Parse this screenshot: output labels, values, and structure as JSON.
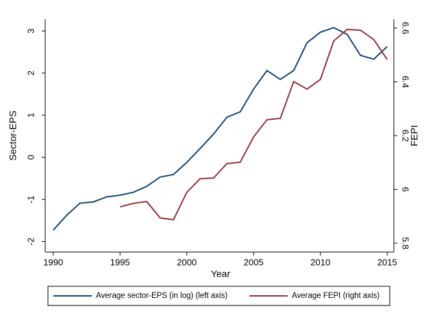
{
  "chart_data": {
    "type": "line",
    "x_label": "Year",
    "y_label": "Sector-EPS",
    "y2_label": "FEPI",
    "x": [
      1990,
      1991,
      1992,
      1993,
      1994,
      1995,
      1996,
      1997,
      1998,
      1999,
      2000,
      2001,
      2002,
      2003,
      2004,
      2005,
      2006,
      2007,
      2008,
      2009,
      2010,
      2011,
      2012,
      2013,
      2014,
      2015
    ],
    "series": [
      {
        "name": "Average sector-EPS (in log) (left axis)",
        "color": "#1a476f",
        "values": [
          -1.73,
          -1.38,
          -1.09,
          -1.06,
          -0.94,
          -0.9,
          -0.83,
          -0.69,
          -0.47,
          -0.41,
          -0.12,
          0.21,
          0.55,
          0.95,
          1.08,
          1.62,
          2.06,
          1.85,
          2.06,
          2.72,
          2.97,
          3.08,
          2.92,
          2.42,
          2.33,
          2.63
        ]
      },
      {
        "name": "Average FEPI (right axis)",
        "color": "#90353b",
        "axis": "y2",
        "values": [
          null,
          null,
          null,
          null,
          null,
          5.935,
          5.948,
          5.955,
          5.894,
          5.887,
          5.989,
          6.04,
          6.042,
          6.096,
          6.101,
          6.195,
          6.259,
          6.264,
          6.401,
          6.373,
          6.409,
          6.552,
          6.595,
          6.592,
          6.557,
          6.483
        ]
      }
    ],
    "xlim": [
      1989.4,
      2015.5
    ],
    "xticks": [
      1990,
      1995,
      2000,
      2005,
      2010,
      2015
    ],
    "ylim": [
      -2.25,
      3.28
    ],
    "yticks": [
      -2,
      -1,
      0,
      1,
      2,
      3
    ],
    "y2lim": [
      5.767,
      6.633
    ],
    "y2ticks": [
      5.8,
      6,
      6.2,
      6.4,
      6.6
    ],
    "legend": "bottom"
  }
}
